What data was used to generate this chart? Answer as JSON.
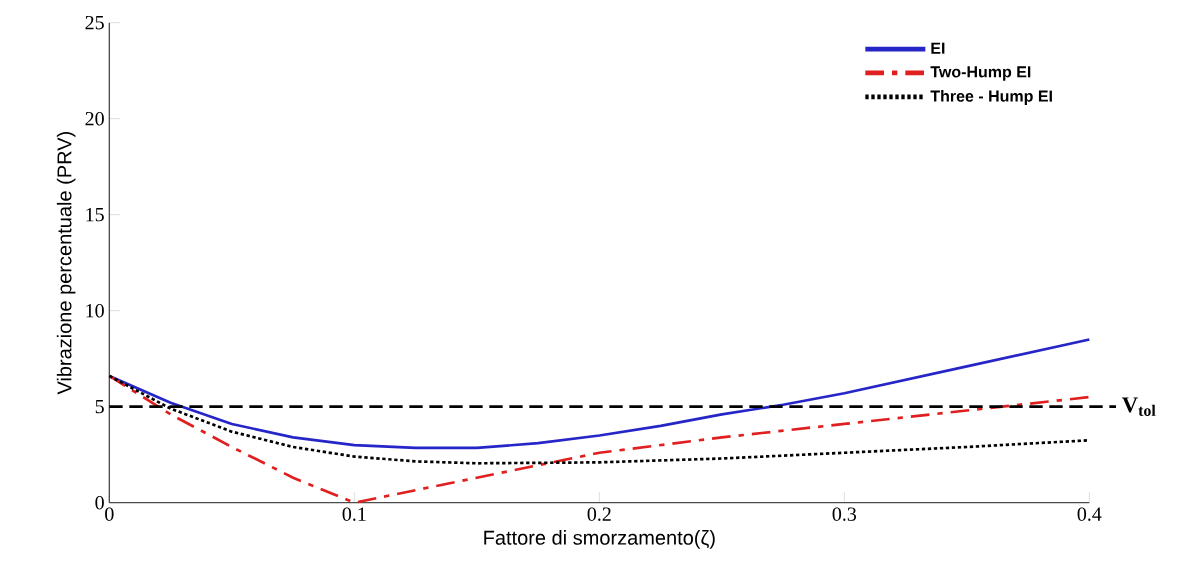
{
  "chart_data": {
    "type": "line",
    "xlabel": "Fattore di smorzamento(ζ)",
    "ylabel": "Vibrazione percentuale (PRV)",
    "xlim": [
      0,
      0.4
    ],
    "ylim": [
      0,
      25
    ],
    "xticks": [
      0,
      0.1,
      0.2,
      0.3,
      0.4
    ],
    "yticks": [
      0,
      5,
      10,
      15,
      20,
      25
    ],
    "legend": "top right",
    "grid": false,
    "series": [
      {
        "name": "EI",
        "color": "#2626c8",
        "line_style": "solid",
        "x": [
          0,
          0.025,
          0.05,
          0.075,
          0.1,
          0.125,
          0.15,
          0.175,
          0.2,
          0.225,
          0.25,
          0.275,
          0.3,
          0.35,
          0.4
        ],
        "values": [
          6.6,
          5.2,
          4.1,
          3.4,
          3.0,
          2.85,
          2.85,
          3.1,
          3.5,
          4.0,
          4.6,
          5.1,
          5.7,
          7.1,
          8.5
        ]
      },
      {
        "name": "Two-Hump EI",
        "color": "#e02020",
        "line_style": "dashdot",
        "x": [
          0,
          0.025,
          0.05,
          0.075,
          0.1,
          0.15,
          0.2,
          0.25,
          0.3,
          0.35,
          0.4
        ],
        "values": [
          6.6,
          4.6,
          2.9,
          1.3,
          0,
          1.3,
          2.6,
          3.4,
          4.1,
          4.8,
          5.5
        ]
      },
      {
        "name": "Three - Hump EI",
        "color": "#000000",
        "line_style": "dotted",
        "x": [
          0,
          0.025,
          0.05,
          0.075,
          0.1,
          0.125,
          0.15,
          0.2,
          0.25,
          0.3,
          0.35,
          0.4
        ],
        "values": [
          6.6,
          4.9,
          3.7,
          2.9,
          2.4,
          2.15,
          2.05,
          2.1,
          2.3,
          2.6,
          2.9,
          3.25
        ]
      }
    ],
    "ref_lines": [
      {
        "axis": "y",
        "value": 5,
        "label": "V$_{tol}$",
        "color": "#000000",
        "line_style": "dashed"
      }
    ]
  }
}
